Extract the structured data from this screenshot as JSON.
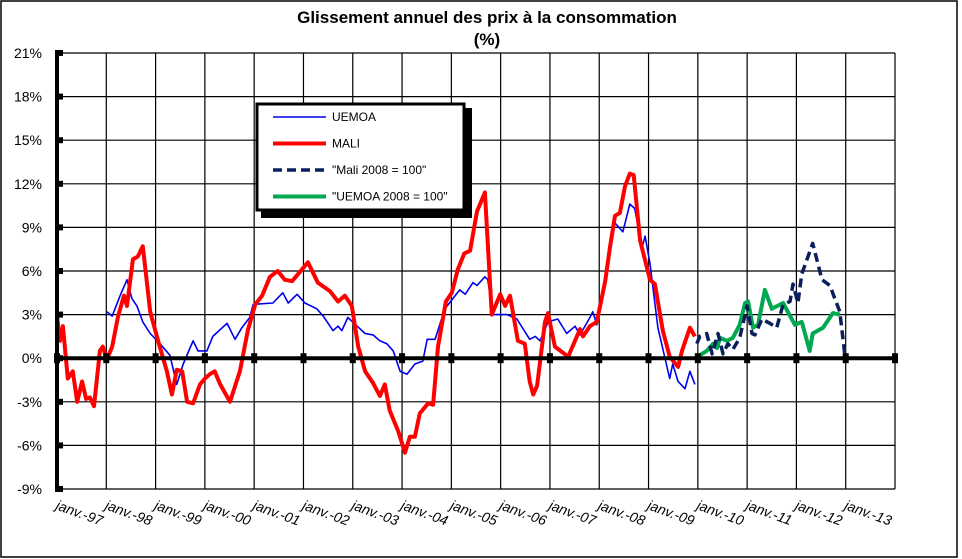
{
  "chart_data": {
    "type": "line",
    "title": "Glissement annuel des prix à la consommation",
    "subtitle": "(%)",
    "xlabel": "",
    "ylabel": "",
    "ylim": [
      -9,
      21
    ],
    "xlim": [
      1997,
      2014
    ],
    "grid": true,
    "legend_position": "top-left-center",
    "y_ticks": [
      "21%",
      "18%",
      "15%",
      "12%",
      "9%",
      "6%",
      "3%",
      "0%",
      "-3%",
      "-6%",
      "-9%"
    ],
    "y_tick_values": [
      21,
      18,
      15,
      12,
      9,
      6,
      3,
      0,
      -3,
      -6,
      -9
    ],
    "x_ticks": [
      "janv.-97",
      "janv.-98",
      "janv.-99",
      "janv.-00",
      "janv.-01",
      "janv.-02",
      "janv.-03",
      "janv.-04",
      "janv.-05",
      "janv.-06",
      "janv.-07",
      "janv.-08",
      "janv.-09",
      "janv.-10",
      "janv.-11",
      "janv.-12",
      "janv.-13"
    ],
    "x_tick_values": [
      1997,
      1998,
      1999,
      2000,
      2001,
      2002,
      2003,
      2004,
      2005,
      2006,
      2007,
      2008,
      2009,
      2010,
      2011,
      2012,
      2013
    ],
    "series": [
      {
        "name": "UEMOA",
        "color": "#0000ee",
        "style": "solid-thin",
        "points": [
          [
            1998.01,
            3.2
          ],
          [
            1998.12,
            2.9
          ],
          [
            1998.28,
            4.3
          ],
          [
            1998.42,
            5.4
          ],
          [
            1998.52,
            4.1
          ],
          [
            1998.62,
            3.6
          ],
          [
            1998.74,
            2.5
          ],
          [
            1998.89,
            1.7
          ],
          [
            1999.09,
            1.0
          ],
          [
            1999.29,
            0.2
          ],
          [
            1999.43,
            -1.8
          ],
          [
            1999.56,
            -0.4
          ],
          [
            1999.76,
            1.2
          ],
          [
            1999.86,
            0.5
          ],
          [
            2000.04,
            0.5
          ],
          [
            2000.16,
            1.5
          ],
          [
            2000.45,
            2.4
          ],
          [
            2000.61,
            1.3
          ],
          [
            2000.75,
            2.1
          ],
          [
            2000.91,
            2.8
          ],
          [
            2000.98,
            3.7
          ],
          [
            2001.38,
            3.8
          ],
          [
            2001.58,
            4.5
          ],
          [
            2001.69,
            3.8
          ],
          [
            2001.87,
            4.4
          ],
          [
            2002.03,
            3.8
          ],
          [
            2002.27,
            3.4
          ],
          [
            2002.4,
            2.9
          ],
          [
            2002.6,
            1.9
          ],
          [
            2002.7,
            2.2
          ],
          [
            2002.78,
            1.9
          ],
          [
            2002.9,
            2.8
          ],
          [
            2003.09,
            2.2
          ],
          [
            2003.25,
            1.7
          ],
          [
            2003.41,
            1.6
          ],
          [
            2003.55,
            1.2
          ],
          [
            2003.69,
            1.0
          ],
          [
            2003.82,
            0.5
          ],
          [
            2003.96,
            -0.9
          ],
          [
            2004.1,
            -1.1
          ],
          [
            2004.26,
            -0.4
          ],
          [
            2004.42,
            -0.2
          ],
          [
            2004.51,
            1.3
          ],
          [
            2004.67,
            1.3
          ],
          [
            2004.87,
            3.4
          ],
          [
            2005.17,
            4.7
          ],
          [
            2005.28,
            4.4
          ],
          [
            2005.44,
            5.2
          ],
          [
            2005.52,
            5.0
          ],
          [
            2005.68,
            5.6
          ],
          [
            2005.74,
            5.4
          ],
          [
            2005.84,
            3.0
          ],
          [
            2006.13,
            3.0
          ],
          [
            2006.33,
            2.7
          ],
          [
            2006.59,
            1.3
          ],
          [
            2006.7,
            1.5
          ],
          [
            2006.8,
            1.2
          ],
          [
            2006.96,
            2.5
          ],
          [
            2007.16,
            2.7
          ],
          [
            2007.34,
            1.7
          ],
          [
            2007.51,
            2.2
          ],
          [
            2007.61,
            1.6
          ],
          [
            2007.81,
            2.8
          ],
          [
            2007.87,
            3.2
          ],
          [
            2007.95,
            2.3
          ],
          [
            2008.07,
            4.1
          ],
          [
            2008.32,
            9.3
          ],
          [
            2008.48,
            8.7
          ],
          [
            2008.62,
            10.6
          ],
          [
            2008.72,
            10.3
          ],
          [
            2008.87,
            7.6
          ],
          [
            2008.93,
            8.4
          ],
          [
            2009.03,
            6.5
          ],
          [
            2009.19,
            2.1
          ],
          [
            2009.43,
            -1.4
          ],
          [
            2009.49,
            -0.4
          ],
          [
            2009.6,
            -1.6
          ],
          [
            2009.74,
            -2.1
          ],
          [
            2009.84,
            -0.9
          ],
          [
            2009.94,
            -1.8
          ]
        ]
      },
      {
        "name": "MALI",
        "color": "#ff0000",
        "style": "solid-thick",
        "points": [
          [
            1997.0,
            2.9
          ],
          [
            1997.06,
            1.2
          ],
          [
            1997.12,
            2.2
          ],
          [
            1997.22,
            -1.4
          ],
          [
            1997.32,
            -0.9
          ],
          [
            1997.41,
            -3.0
          ],
          [
            1997.51,
            -1.6
          ],
          [
            1997.59,
            -2.8
          ],
          [
            1997.67,
            -2.7
          ],
          [
            1997.75,
            -3.3
          ],
          [
            1997.87,
            0.5
          ],
          [
            1997.93,
            0.8
          ],
          [
            1998.01,
            -0.1
          ],
          [
            1998.12,
            0.8
          ],
          [
            1998.24,
            2.9
          ],
          [
            1998.36,
            4.3
          ],
          [
            1998.42,
            3.6
          ],
          [
            1998.54,
            6.8
          ],
          [
            1998.64,
            7.0
          ],
          [
            1998.74,
            7.7
          ],
          [
            1998.89,
            3.2
          ],
          [
            1999.05,
            1.2
          ],
          [
            1999.23,
            -0.9
          ],
          [
            1999.33,
            -2.5
          ],
          [
            1999.43,
            -0.8
          ],
          [
            1999.54,
            -0.9
          ],
          [
            1999.64,
            -3.0
          ],
          [
            1999.76,
            -3.1
          ],
          [
            1999.9,
            -1.8
          ],
          [
            2000.0,
            -1.4
          ],
          [
            2000.1,
            -1.1
          ],
          [
            2000.2,
            -0.9
          ],
          [
            2000.31,
            -1.8
          ],
          [
            2000.51,
            -3.0
          ],
          [
            2000.71,
            -0.9
          ],
          [
            2000.87,
            1.9
          ],
          [
            2001.02,
            3.7
          ],
          [
            2001.16,
            4.3
          ],
          [
            2001.32,
            5.6
          ],
          [
            2001.48,
            6.0
          ],
          [
            2001.62,
            5.4
          ],
          [
            2001.77,
            5.3
          ],
          [
            2002.09,
            6.6
          ],
          [
            2002.29,
            5.2
          ],
          [
            2002.54,
            4.6
          ],
          [
            2002.7,
            3.9
          ],
          [
            2002.84,
            4.3
          ],
          [
            2002.98,
            3.6
          ],
          [
            2003.11,
            0.8
          ],
          [
            2003.25,
            -0.9
          ],
          [
            2003.41,
            -1.7
          ],
          [
            2003.55,
            -2.6
          ],
          [
            2003.65,
            -1.8
          ],
          [
            2003.75,
            -3.6
          ],
          [
            2003.92,
            -5.0
          ],
          [
            2004.06,
            -6.5
          ],
          [
            2004.16,
            -5.4
          ],
          [
            2004.26,
            -5.4
          ],
          [
            2004.36,
            -3.8
          ],
          [
            2004.53,
            -3.1
          ],
          [
            2004.63,
            -3.2
          ],
          [
            2004.73,
            0.8
          ],
          [
            2004.89,
            3.9
          ],
          [
            2005.01,
            4.5
          ],
          [
            2005.13,
            6.1
          ],
          [
            2005.26,
            7.2
          ],
          [
            2005.38,
            7.4
          ],
          [
            2005.52,
            10.1
          ],
          [
            2005.68,
            11.4
          ],
          [
            2005.82,
            3.0
          ],
          [
            2005.99,
            4.4
          ],
          [
            2006.09,
            3.6
          ],
          [
            2006.19,
            4.3
          ],
          [
            2006.35,
            1.2
          ],
          [
            2006.49,
            1.0
          ],
          [
            2006.59,
            -1.6
          ],
          [
            2006.66,
            -2.5
          ],
          [
            2006.74,
            -1.9
          ],
          [
            2006.9,
            2.5
          ],
          [
            2006.96,
            3.1
          ],
          [
            2007.1,
            0.8
          ],
          [
            2007.37,
            0.1
          ],
          [
            2007.61,
            2.0
          ],
          [
            2007.67,
            1.5
          ],
          [
            2007.81,
            2.2
          ],
          [
            2007.95,
            2.5
          ],
          [
            2008.12,
            5.3
          ],
          [
            2008.22,
            7.7
          ],
          [
            2008.32,
            9.8
          ],
          [
            2008.42,
            10.0
          ],
          [
            2008.52,
            11.8
          ],
          [
            2008.62,
            12.7
          ],
          [
            2008.7,
            12.6
          ],
          [
            2008.83,
            8.1
          ],
          [
            2009.03,
            5.4
          ],
          [
            2009.13,
            5.1
          ],
          [
            2009.29,
            1.9
          ],
          [
            2009.43,
            0.1
          ],
          [
            2009.6,
            -0.6
          ],
          [
            2009.68,
            0.5
          ],
          [
            2009.84,
            2.1
          ],
          [
            2009.94,
            1.5
          ]
        ]
      },
      {
        "name": "\"Mali 2008 = 100\"",
        "color": "#0a1f5c",
        "style": "dashed-thick",
        "points": [
          [
            2009.98,
            1.0
          ],
          [
            2010.04,
            1.5
          ],
          [
            2010.18,
            1.7
          ],
          [
            2010.29,
            0.3
          ],
          [
            2010.41,
            1.7
          ],
          [
            2010.51,
            0.3
          ],
          [
            2010.61,
            1.0
          ],
          [
            2010.71,
            0.6
          ],
          [
            2010.85,
            1.4
          ],
          [
            2011.0,
            3.6
          ],
          [
            2011.1,
            1.7
          ],
          [
            2011.16,
            1.6
          ],
          [
            2011.3,
            2.7
          ],
          [
            2011.46,
            2.4
          ],
          [
            2011.6,
            2.1
          ],
          [
            2011.73,
            3.7
          ],
          [
            2011.87,
            3.9
          ],
          [
            2011.93,
            5.1
          ],
          [
            2012.03,
            3.8
          ],
          [
            2012.11,
            5.8
          ],
          [
            2012.33,
            7.9
          ],
          [
            2012.52,
            5.4
          ],
          [
            2012.68,
            5.0
          ],
          [
            2012.88,
            3.2
          ],
          [
            2012.98,
            0.3
          ]
        ]
      },
      {
        "name": "\"UEMOA 2008 = 100\"",
        "color": "#00a84f",
        "style": "solid-thick",
        "points": [
          [
            2009.94,
            0.0
          ],
          [
            2010.18,
            0.5
          ],
          [
            2010.31,
            1.0
          ],
          [
            2010.39,
            0.7
          ],
          [
            2010.45,
            1.4
          ],
          [
            2010.59,
            1.2
          ],
          [
            2010.71,
            1.4
          ],
          [
            2010.85,
            2.3
          ],
          [
            2010.96,
            3.8
          ],
          [
            2011.02,
            3.9
          ],
          [
            2011.12,
            2.1
          ],
          [
            2011.22,
            2.3
          ],
          [
            2011.36,
            4.7
          ],
          [
            2011.5,
            3.4
          ],
          [
            2011.73,
            3.8
          ],
          [
            2011.97,
            2.3
          ],
          [
            2012.11,
            2.5
          ],
          [
            2012.27,
            0.5
          ],
          [
            2012.33,
            1.7
          ],
          [
            2012.54,
            2.1
          ],
          [
            2012.74,
            3.1
          ],
          [
            2012.88,
            3.0
          ]
        ]
      }
    ]
  }
}
